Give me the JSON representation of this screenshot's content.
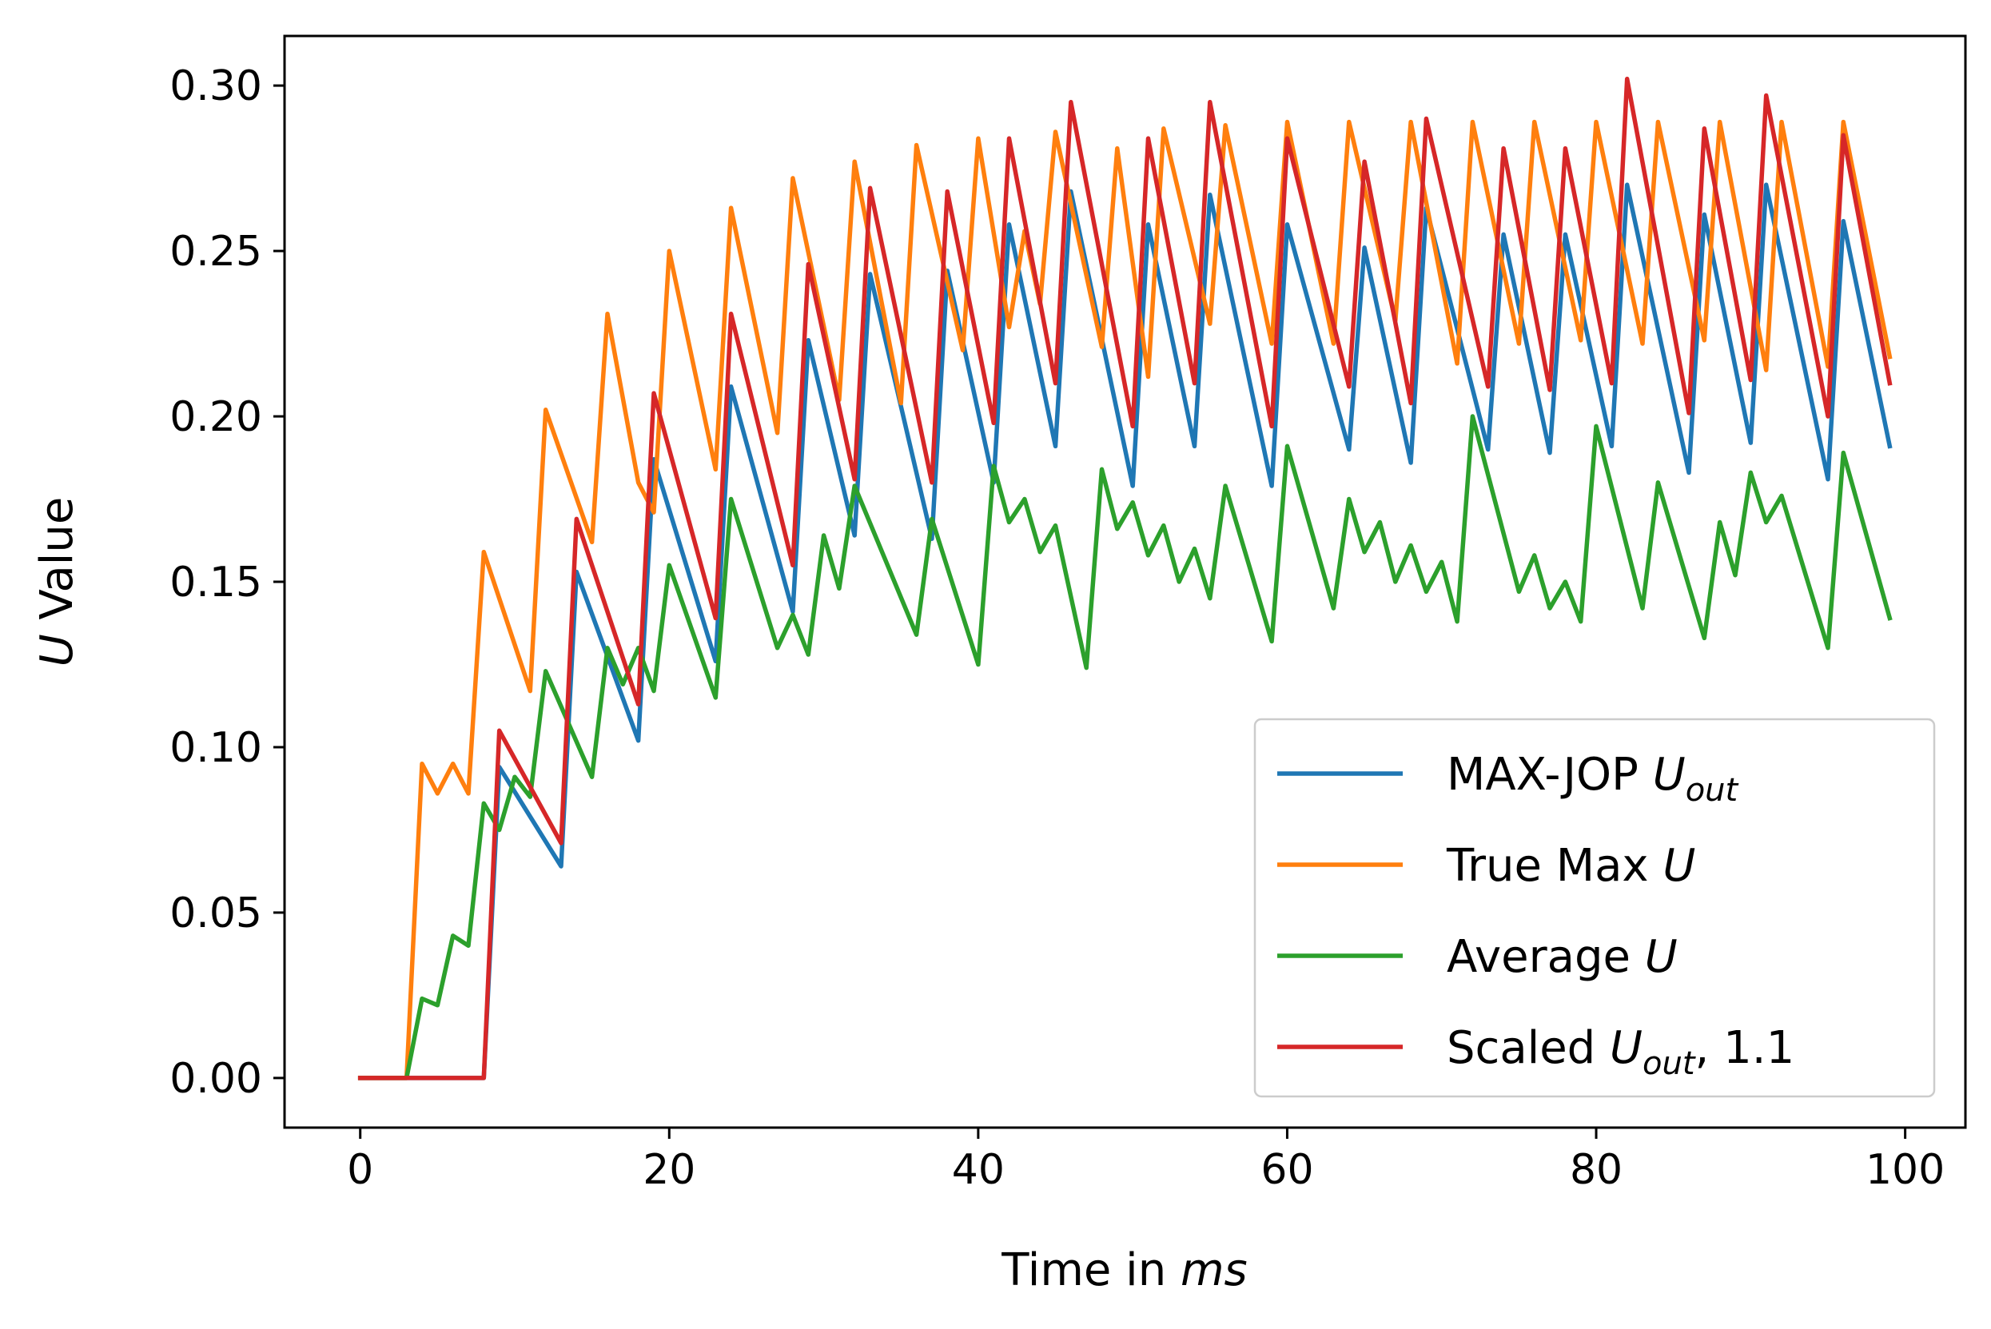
{
  "chart_data": {
    "type": "line",
    "xlabel": {
      "prefix": "Time in ",
      "italic": "ms"
    },
    "ylabel": {
      "italic": "U",
      "suffix": " Value"
    },
    "xlim": [
      -4.9,
      103.9
    ],
    "ylim": [
      -0.015,
      0.315
    ],
    "x_ticks": [
      0,
      20,
      40,
      60,
      80,
      100
    ],
    "x_tick_labels": [
      "0",
      "20",
      "40",
      "60",
      "80",
      "100"
    ],
    "y_ticks": [
      0.0,
      0.05,
      0.1,
      0.15,
      0.2,
      0.25,
      0.3
    ],
    "y_tick_labels": [
      "0.00",
      "0.05",
      "0.10",
      "0.15",
      "0.20",
      "0.25",
      "0.30"
    ],
    "grid": false,
    "legend_position": "lower-right",
    "series": [
      {
        "name": "MAX-JOP U_out",
        "legend": {
          "prefix": "MAX-JOP ",
          "italic": "U",
          "sub": "out",
          "suffix": ""
        },
        "color": "#1f77b4",
        "points": [
          [
            0,
            0
          ],
          [
            3,
            0
          ],
          [
            8,
            0
          ],
          [
            9,
            0.094
          ],
          [
            13,
            0.064
          ],
          [
            14,
            0.153
          ],
          [
            18,
            0.102
          ],
          [
            19,
            0.187
          ],
          [
            23,
            0.126
          ],
          [
            24,
            0.209
          ],
          [
            28,
            0.141
          ],
          [
            29,
            0.223
          ],
          [
            32,
            0.164
          ],
          [
            33,
            0.243
          ],
          [
            37,
            0.163
          ],
          [
            38,
            0.244
          ],
          [
            41,
            0.18
          ],
          [
            42,
            0.258
          ],
          [
            45,
            0.191
          ],
          [
            46,
            0.268
          ],
          [
            50,
            0.179
          ],
          [
            51,
            0.258
          ],
          [
            54,
            0.191
          ],
          [
            55,
            0.267
          ],
          [
            59,
            0.179
          ],
          [
            60,
            0.258
          ],
          [
            64,
            0.19
          ],
          [
            65,
            0.251
          ],
          [
            68,
            0.186
          ],
          [
            69,
            0.263
          ],
          [
            73,
            0.19
          ],
          [
            74,
            0.255
          ],
          [
            77,
            0.189
          ],
          [
            78,
            0.255
          ],
          [
            81,
            0.191
          ],
          [
            82,
            0.27
          ],
          [
            86,
            0.183
          ],
          [
            87,
            0.261
          ],
          [
            90,
            0.192
          ],
          [
            91,
            0.27
          ],
          [
            95,
            0.181
          ],
          [
            96,
            0.259
          ],
          [
            99,
            0.191
          ]
        ]
      },
      {
        "name": "True Max U",
        "legend": {
          "prefix": "True Max ",
          "italic": "U",
          "sub": "",
          "suffix": ""
        },
        "color": "#ff7f0e",
        "points": [
          [
            0,
            0
          ],
          [
            3,
            0
          ],
          [
            4,
            0.095
          ],
          [
            5,
            0.086
          ],
          [
            6,
            0.095
          ],
          [
            7,
            0.086
          ],
          [
            8,
            0.159
          ],
          [
            11,
            0.117
          ],
          [
            12,
            0.202
          ],
          [
            15,
            0.162
          ],
          [
            16,
            0.231
          ],
          [
            18,
            0.18
          ],
          [
            19,
            0.171
          ],
          [
            20,
            0.25
          ],
          [
            23,
            0.184
          ],
          [
            24,
            0.263
          ],
          [
            27,
            0.195
          ],
          [
            28,
            0.272
          ],
          [
            31,
            0.205
          ],
          [
            32,
            0.277
          ],
          [
            35,
            0.204
          ],
          [
            36,
            0.282
          ],
          [
            39,
            0.22
          ],
          [
            40,
            0.284
          ],
          [
            42,
            0.227
          ],
          [
            43,
            0.256
          ],
          [
            44,
            0.234
          ],
          [
            45,
            0.286
          ],
          [
            48,
            0.221
          ],
          [
            49,
            0.281
          ],
          [
            51,
            0.212
          ],
          [
            52,
            0.287
          ],
          [
            55,
            0.228
          ],
          [
            56,
            0.288
          ],
          [
            59,
            0.222
          ],
          [
            60,
            0.289
          ],
          [
            63,
            0.222
          ],
          [
            64,
            0.289
          ],
          [
            67,
            0.229
          ],
          [
            68,
            0.289
          ],
          [
            71,
            0.216
          ],
          [
            72,
            0.289
          ],
          [
            75,
            0.222
          ],
          [
            76,
            0.289
          ],
          [
            79,
            0.223
          ],
          [
            80,
            0.289
          ],
          [
            83,
            0.222
          ],
          [
            84,
            0.289
          ],
          [
            87,
            0.223
          ],
          [
            88,
            0.289
          ],
          [
            91,
            0.214
          ],
          [
            92,
            0.289
          ],
          [
            95,
            0.215
          ],
          [
            96,
            0.289
          ],
          [
            99,
            0.218
          ]
        ]
      },
      {
        "name": "Average U",
        "legend": {
          "prefix": "Average ",
          "italic": "U",
          "sub": "",
          "suffix": ""
        },
        "color": "#2ca02c",
        "points": [
          [
            0,
            0
          ],
          [
            3,
            0
          ],
          [
            4,
            0.024
          ],
          [
            5,
            0.022
          ],
          [
            6,
            0.043
          ],
          [
            7,
            0.04
          ],
          [
            8,
            0.083
          ],
          [
            9,
            0.075
          ],
          [
            10,
            0.091
          ],
          [
            11,
            0.085
          ],
          [
            12,
            0.123
          ],
          [
            15,
            0.091
          ],
          [
            16,
            0.13
          ],
          [
            17,
            0.119
          ],
          [
            18,
            0.13
          ],
          [
            19,
            0.117
          ],
          [
            20,
            0.155
          ],
          [
            23,
            0.115
          ],
          [
            24,
            0.175
          ],
          [
            27,
            0.13
          ],
          [
            28,
            0.14
          ],
          [
            29,
            0.128
          ],
          [
            30,
            0.164
          ],
          [
            31,
            0.148
          ],
          [
            32,
            0.179
          ],
          [
            36,
            0.134
          ],
          [
            37,
            0.169
          ],
          [
            40,
            0.125
          ],
          [
            41,
            0.185
          ],
          [
            42,
            0.168
          ],
          [
            43,
            0.175
          ],
          [
            44,
            0.159
          ],
          [
            45,
            0.167
          ],
          [
            47,
            0.124
          ],
          [
            48,
            0.184
          ],
          [
            49,
            0.166
          ],
          [
            50,
            0.174
          ],
          [
            51,
            0.158
          ],
          [
            52,
            0.167
          ],
          [
            53,
            0.15
          ],
          [
            54,
            0.16
          ],
          [
            55,
            0.145
          ],
          [
            56,
            0.179
          ],
          [
            59,
            0.132
          ],
          [
            60,
            0.191
          ],
          [
            63,
            0.142
          ],
          [
            64,
            0.175
          ],
          [
            65,
            0.159
          ],
          [
            66,
            0.168
          ],
          [
            67,
            0.15
          ],
          [
            68,
            0.161
          ],
          [
            69,
            0.147
          ],
          [
            70,
            0.156
          ],
          [
            71,
            0.138
          ],
          [
            72,
            0.2
          ],
          [
            75,
            0.147
          ],
          [
            76,
            0.158
          ],
          [
            77,
            0.142
          ],
          [
            78,
            0.15
          ],
          [
            79,
            0.138
          ],
          [
            80,
            0.197
          ],
          [
            83,
            0.142
          ],
          [
            84,
            0.18
          ],
          [
            87,
            0.133
          ],
          [
            88,
            0.168
          ],
          [
            89,
            0.152
          ],
          [
            90,
            0.183
          ],
          [
            91,
            0.168
          ],
          [
            92,
            0.176
          ],
          [
            95,
            0.13
          ],
          [
            96,
            0.189
          ],
          [
            99,
            0.139
          ]
        ]
      },
      {
        "name": "Scaled U_out, 1.1",
        "legend": {
          "prefix": "Scaled ",
          "italic": "U",
          "sub": "out",
          "suffix": ", 1.1"
        },
        "color": "#d62728",
        "points": [
          [
            0,
            0
          ],
          [
            3,
            0
          ],
          [
            8,
            0
          ],
          [
            9,
            0.105
          ],
          [
            13,
            0.071
          ],
          [
            14,
            0.169
          ],
          [
            18,
            0.113
          ],
          [
            19,
            0.207
          ],
          [
            23,
            0.139
          ],
          [
            24,
            0.231
          ],
          [
            28,
            0.155
          ],
          [
            29,
            0.246
          ],
          [
            32,
            0.181
          ],
          [
            33,
            0.269
          ],
          [
            37,
            0.18
          ],
          [
            38,
            0.268
          ],
          [
            41,
            0.198
          ],
          [
            42,
            0.284
          ],
          [
            45,
            0.21
          ],
          [
            46,
            0.295
          ],
          [
            50,
            0.197
          ],
          [
            51,
            0.284
          ],
          [
            54,
            0.21
          ],
          [
            55,
            0.295
          ],
          [
            59,
            0.197
          ],
          [
            60,
            0.284
          ],
          [
            64,
            0.209
          ],
          [
            65,
            0.277
          ],
          [
            68,
            0.204
          ],
          [
            69,
            0.29
          ],
          [
            73,
            0.209
          ],
          [
            74,
            0.281
          ],
          [
            77,
            0.208
          ],
          [
            78,
            0.281
          ],
          [
            81,
            0.21
          ],
          [
            82,
            0.302
          ],
          [
            86,
            0.201
          ],
          [
            87,
            0.287
          ],
          [
            90,
            0.211
          ],
          [
            91,
            0.297
          ],
          [
            95,
            0.2
          ],
          [
            96,
            0.285
          ],
          [
            99,
            0.21
          ]
        ]
      }
    ]
  }
}
